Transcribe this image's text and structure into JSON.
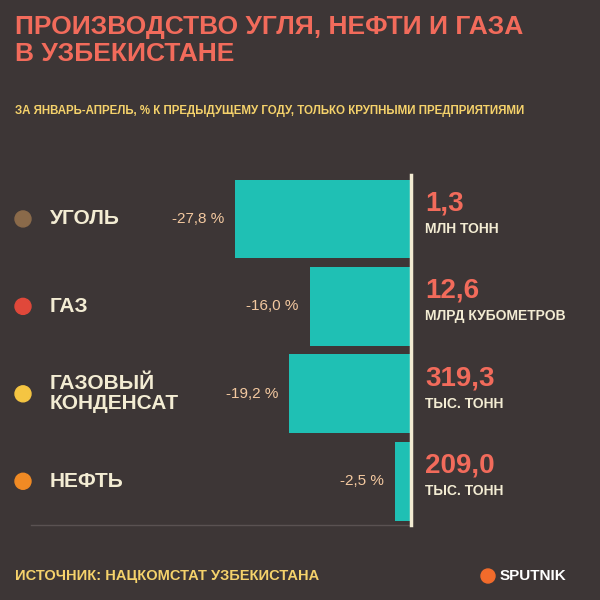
{
  "chart_data": {
    "type": "bar",
    "orientation": "horizontal",
    "title": "ПРОИЗВОДСТВО УГЛЯ, НЕФТИ И ГАЗА\nВ УЗБЕКИСТАНЕ",
    "subtitle": "ЗА ЯНВАРЬ-АПРЕЛЬ, % К ПРЕДЫДУЩЕМУ ГОДУ, ТОЛЬКО КРУПНЫМИ ПРЕДПРИЯТИЯМИ",
    "categories": [
      "УГОЛЬ",
      "ГАЗ",
      "ГАЗОВЫЙ\nКОНДЕНСАТ",
      "НЕФТЬ"
    ],
    "values": [
      -27.8,
      -16.0,
      -19.2,
      -2.5
    ],
    "value_labels": [
      "-27,8 %",
      "-16,0 %",
      "-19,2 %",
      "-2,5 %"
    ],
    "data_labels": true,
    "color": "#1fc0b4",
    "xlim": [
      -60,
      0
    ],
    "xticks": [],
    "tick_labels": false,
    "grid": false,
    "amounts": [
      {
        "label": "1,3",
        "unit": "МЛН ТОНН"
      },
      {
        "label": "12,6",
        "unit": "МЛРД КУБОМЕТРОВ"
      },
      {
        "label": "319,3",
        "unit": "ТЫС. ТОНН"
      },
      {
        "label": "209,0",
        "unit": "ТЫС. ТОНН"
      }
    ],
    "source": "ИСТОЧНИК: НАЦКОМСТАТ УЗБЕКИСТАНА",
    "logo": "SPUTNIK"
  }
}
